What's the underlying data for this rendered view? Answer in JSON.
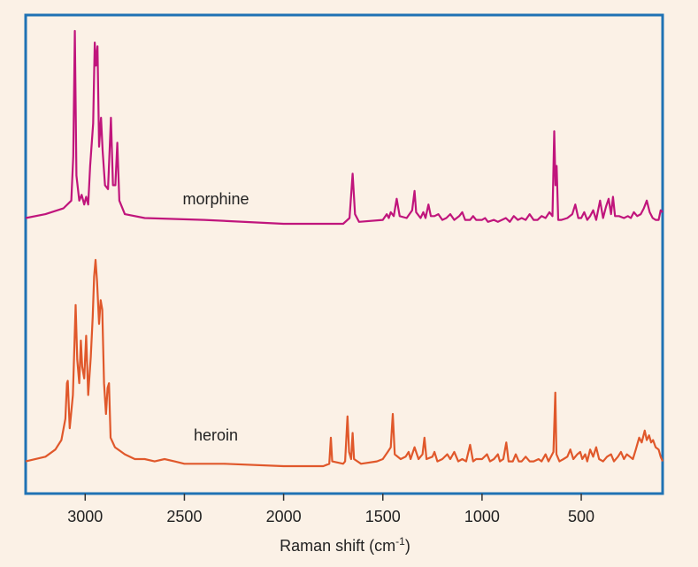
{
  "chart_data": {
    "type": "line",
    "title": "",
    "xlabel": "Raman shift (cm-1)",
    "xlabel_parts": {
      "main": "Raman shift (cm",
      "sup": "-1",
      "close": ")"
    },
    "ylabel": "",
    "x_axis_reversed": true,
    "xlim": [
      3300,
      90
    ],
    "ticks": [
      {
        "value": 3000,
        "label": "3000"
      },
      {
        "value": 2500,
        "label": "2500"
      },
      {
        "value": 2000,
        "label": "2000"
      },
      {
        "value": 1500,
        "label": "1500"
      },
      {
        "value": 1000,
        "label": "1000"
      },
      {
        "value": 500,
        "label": "500"
      }
    ],
    "frame_color": "#1f72b4",
    "grid": false,
    "legend": "none (inline labels next to each trace)",
    "series": [
      {
        "name": "morphine",
        "color": "#c0157c",
        "baseline": 0,
        "points": [
          [
            3300,
            0.03
          ],
          [
            3200,
            0.05
          ],
          [
            3110,
            0.08
          ],
          [
            3070,
            0.12
          ],
          [
            3060,
            0.35
          ],
          [
            3052,
            1.0
          ],
          [
            3044,
            0.25
          ],
          [
            3030,
            0.12
          ],
          [
            3018,
            0.15
          ],
          [
            3005,
            0.1
          ],
          [
            2995,
            0.14
          ],
          [
            2985,
            0.1
          ],
          [
            2975,
            0.3
          ],
          [
            2960,
            0.52
          ],
          [
            2952,
            0.94
          ],
          [
            2946,
            0.82
          ],
          [
            2938,
            0.92
          ],
          [
            2930,
            0.4
          ],
          [
            2920,
            0.55
          ],
          [
            2912,
            0.38
          ],
          [
            2900,
            0.2
          ],
          [
            2885,
            0.18
          ],
          [
            2870,
            0.55
          ],
          [
            2860,
            0.2
          ],
          [
            2848,
            0.2
          ],
          [
            2838,
            0.42
          ],
          [
            2828,
            0.12
          ],
          [
            2800,
            0.05
          ],
          [
            2700,
            0.03
          ],
          [
            2400,
            0.02
          ],
          [
            2000,
            0.0
          ],
          [
            1700,
            0.0
          ],
          [
            1668,
            0.03
          ],
          [
            1652,
            0.26
          ],
          [
            1640,
            0.05
          ],
          [
            1620,
            0.01
          ],
          [
            1500,
            0.02
          ],
          [
            1480,
            0.05
          ],
          [
            1470,
            0.03
          ],
          [
            1460,
            0.06
          ],
          [
            1445,
            0.04
          ],
          [
            1430,
            0.13
          ],
          [
            1415,
            0.04
          ],
          [
            1380,
            0.03
          ],
          [
            1352,
            0.07
          ],
          [
            1340,
            0.17
          ],
          [
            1332,
            0.06
          ],
          [
            1310,
            0.03
          ],
          [
            1296,
            0.06
          ],
          [
            1285,
            0.03
          ],
          [
            1270,
            0.1
          ],
          [
            1258,
            0.04
          ],
          [
            1240,
            0.04
          ],
          [
            1220,
            0.05
          ],
          [
            1200,
            0.02
          ],
          [
            1180,
            0.03
          ],
          [
            1160,
            0.05
          ],
          [
            1140,
            0.02
          ],
          [
            1115,
            0.04
          ],
          [
            1100,
            0.06
          ],
          [
            1085,
            0.02
          ],
          [
            1060,
            0.02
          ],
          [
            1045,
            0.04
          ],
          [
            1030,
            0.02
          ],
          [
            1000,
            0.02
          ],
          [
            985,
            0.03
          ],
          [
            970,
            0.01
          ],
          [
            940,
            0.02
          ],
          [
            920,
            0.01
          ],
          [
            880,
            0.03
          ],
          [
            860,
            0.01
          ],
          [
            840,
            0.04
          ],
          [
            820,
            0.02
          ],
          [
            800,
            0.03
          ],
          [
            780,
            0.02
          ],
          [
            760,
            0.05
          ],
          [
            740,
            0.02
          ],
          [
            720,
            0.02
          ],
          [
            700,
            0.04
          ],
          [
            680,
            0.03
          ],
          [
            660,
            0.06
          ],
          [
            645,
            0.04
          ],
          [
            636,
            0.48
          ],
          [
            630,
            0.2
          ],
          [
            624,
            0.3
          ],
          [
            616,
            0.02
          ],
          [
            600,
            0.02
          ],
          [
            570,
            0.03
          ],
          [
            545,
            0.05
          ],
          [
            530,
            0.1
          ],
          [
            515,
            0.03
          ],
          [
            500,
            0.03
          ],
          [
            485,
            0.06
          ],
          [
            470,
            0.02
          ],
          [
            455,
            0.04
          ],
          [
            440,
            0.07
          ],
          [
            425,
            0.02
          ],
          [
            405,
            0.12
          ],
          [
            390,
            0.03
          ],
          [
            375,
            0.09
          ],
          [
            362,
            0.13
          ],
          [
            350,
            0.05
          ],
          [
            340,
            0.14
          ],
          [
            330,
            0.04
          ],
          [
            310,
            0.04
          ],
          [
            285,
            0.03
          ],
          [
            265,
            0.04
          ],
          [
            250,
            0.03
          ],
          [
            235,
            0.06
          ],
          [
            218,
            0.04
          ],
          [
            200,
            0.05
          ],
          [
            185,
            0.08
          ],
          [
            170,
            0.12
          ],
          [
            155,
            0.06
          ],
          [
            140,
            0.03
          ],
          [
            125,
            0.02
          ],
          [
            110,
            0.02
          ],
          [
            100,
            0.07
          ],
          [
            90,
            0.06
          ]
        ]
      },
      {
        "name": "heroin",
        "color": "#e0582b",
        "baseline": 0,
        "points": [
          [
            3300,
            0.02
          ],
          [
            3200,
            0.04
          ],
          [
            3150,
            0.07
          ],
          [
            3120,
            0.11
          ],
          [
            3100,
            0.2
          ],
          [
            3092,
            0.35
          ],
          [
            3088,
            0.36
          ],
          [
            3078,
            0.16
          ],
          [
            3062,
            0.3
          ],
          [
            3048,
            0.68
          ],
          [
            3040,
            0.45
          ],
          [
            3030,
            0.35
          ],
          [
            3022,
            0.53
          ],
          [
            3015,
            0.42
          ],
          [
            3005,
            0.37
          ],
          [
            2995,
            0.55
          ],
          [
            2985,
            0.3
          ],
          [
            2972,
            0.46
          ],
          [
            2962,
            0.63
          ],
          [
            2955,
            0.8
          ],
          [
            2948,
            0.87
          ],
          [
            2940,
            0.78
          ],
          [
            2930,
            0.6
          ],
          [
            2922,
            0.7
          ],
          [
            2914,
            0.66
          ],
          [
            2905,
            0.35
          ],
          [
            2895,
            0.22
          ],
          [
            2887,
            0.33
          ],
          [
            2880,
            0.35
          ],
          [
            2872,
            0.12
          ],
          [
            2850,
            0.08
          ],
          [
            2800,
            0.05
          ],
          [
            2750,
            0.03
          ],
          [
            2700,
            0.03
          ],
          [
            2650,
            0.02
          ],
          [
            2600,
            0.03
          ],
          [
            2550,
            0.02
          ],
          [
            2500,
            0.01
          ],
          [
            2300,
            0.01
          ],
          [
            2000,
            0.0
          ],
          [
            1800,
            0.0
          ],
          [
            1770,
            0.01
          ],
          [
            1762,
            0.12
          ],
          [
            1755,
            0.02
          ],
          [
            1700,
            0.01
          ],
          [
            1690,
            0.02
          ],
          [
            1678,
            0.21
          ],
          [
            1670,
            0.06
          ],
          [
            1660,
            0.03
          ],
          [
            1652,
            0.14
          ],
          [
            1645,
            0.03
          ],
          [
            1610,
            0.01
          ],
          [
            1530,
            0.02
          ],
          [
            1500,
            0.03
          ],
          [
            1475,
            0.06
          ],
          [
            1460,
            0.08
          ],
          [
            1450,
            0.22
          ],
          [
            1440,
            0.05
          ],
          [
            1410,
            0.03
          ],
          [
            1385,
            0.04
          ],
          [
            1370,
            0.06
          ],
          [
            1360,
            0.03
          ],
          [
            1340,
            0.08
          ],
          [
            1320,
            0.03
          ],
          [
            1300,
            0.05
          ],
          [
            1290,
            0.12
          ],
          [
            1280,
            0.03
          ],
          [
            1250,
            0.04
          ],
          [
            1240,
            0.06
          ],
          [
            1225,
            0.02
          ],
          [
            1200,
            0.03
          ],
          [
            1175,
            0.05
          ],
          [
            1160,
            0.03
          ],
          [
            1140,
            0.06
          ],
          [
            1120,
            0.02
          ],
          [
            1100,
            0.03
          ],
          [
            1080,
            0.02
          ],
          [
            1060,
            0.09
          ],
          [
            1045,
            0.02
          ],
          [
            1030,
            0.03
          ],
          [
            1000,
            0.03
          ],
          [
            975,
            0.05
          ],
          [
            960,
            0.02
          ],
          [
            940,
            0.03
          ],
          [
            920,
            0.05
          ],
          [
            910,
            0.02
          ],
          [
            893,
            0.03
          ],
          [
            878,
            0.1
          ],
          [
            866,
            0.02
          ],
          [
            845,
            0.02
          ],
          [
            830,
            0.05
          ],
          [
            815,
            0.02
          ],
          [
            800,
            0.02
          ],
          [
            780,
            0.04
          ],
          [
            760,
            0.02
          ],
          [
            740,
            0.02
          ],
          [
            715,
            0.03
          ],
          [
            700,
            0.02
          ],
          [
            680,
            0.05
          ],
          [
            665,
            0.02
          ],
          [
            640,
            0.06
          ],
          [
            631,
            0.31
          ],
          [
            625,
            0.05
          ],
          [
            610,
            0.02
          ],
          [
            590,
            0.03
          ],
          [
            570,
            0.04
          ],
          [
            555,
            0.07
          ],
          [
            540,
            0.03
          ],
          [
            520,
            0.05
          ],
          [
            505,
            0.06
          ],
          [
            495,
            0.03
          ],
          [
            480,
            0.05
          ],
          [
            470,
            0.02
          ],
          [
            455,
            0.07
          ],
          [
            440,
            0.04
          ],
          [
            425,
            0.08
          ],
          [
            410,
            0.03
          ],
          [
            390,
            0.02
          ],
          [
            370,
            0.04
          ],
          [
            350,
            0.05
          ],
          [
            335,
            0.02
          ],
          [
            315,
            0.04
          ],
          [
            300,
            0.06
          ],
          [
            285,
            0.03
          ],
          [
            270,
            0.05
          ],
          [
            255,
            0.04
          ],
          [
            240,
            0.03
          ],
          [
            225,
            0.07
          ],
          [
            208,
            0.12
          ],
          [
            195,
            0.1
          ],
          [
            180,
            0.15
          ],
          [
            170,
            0.11
          ],
          [
            158,
            0.13
          ],
          [
            148,
            0.1
          ],
          [
            138,
            0.11
          ],
          [
            125,
            0.08
          ],
          [
            110,
            0.07
          ],
          [
            100,
            0.04
          ],
          [
            90,
            0.02
          ]
        ]
      }
    ]
  }
}
